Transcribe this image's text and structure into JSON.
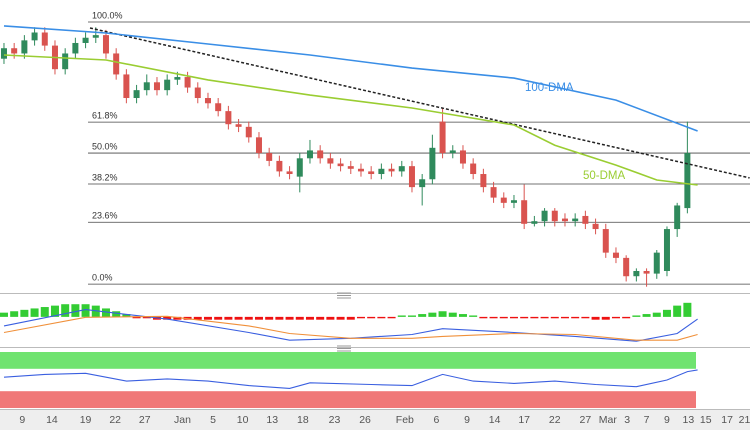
{
  "chart_data": {
    "type": "candlestick",
    "xlim": [
      -0.39,
      73.14
    ],
    "ylim": [
      -3.4,
      108.4
    ],
    "xticks": [
      {
        "value": 1.8,
        "label": "9"
      },
      {
        "value": 4.7,
        "label": "14"
      },
      {
        "value": 8.0,
        "label": "19"
      },
      {
        "value": 10.9,
        "label": "22"
      },
      {
        "value": 13.8,
        "label": "27"
      },
      {
        "value": 17.5,
        "label": "Jan"
      },
      {
        "value": 20.5,
        "label": "5"
      },
      {
        "value": 23.4,
        "label": "10"
      },
      {
        "value": 26.3,
        "label": "13"
      },
      {
        "value": 29.3,
        "label": "18"
      },
      {
        "value": 32.4,
        "label": "23"
      },
      {
        "value": 35.4,
        "label": "26"
      },
      {
        "value": 39.3,
        "label": "Feb"
      },
      {
        "value": 42.4,
        "label": "6"
      },
      {
        "value": 45.4,
        "label": "9"
      },
      {
        "value": 48.1,
        "label": "14"
      },
      {
        "value": 51.0,
        "label": "17"
      },
      {
        "value": 54.0,
        "label": "22"
      },
      {
        "value": 57.0,
        "label": "27"
      },
      {
        "value": 59.2,
        "label": "Mar"
      },
      {
        "value": 61.1,
        "label": "3"
      },
      {
        "value": 63.0,
        "label": "7"
      },
      {
        "value": 65.0,
        "label": "9"
      },
      {
        "value": 67.1,
        "label": "13"
      },
      {
        "value": 68.8,
        "label": "15"
      },
      {
        "value": 70.9,
        "label": "17"
      },
      {
        "value": 72.6,
        "label": "21"
      }
    ],
    "up_color": "#2f8a5c",
    "down_color": "#d9534f",
    "open": [
      86,
      90,
      88,
      93,
      96,
      91,
      82,
      88,
      92,
      94,
      95,
      88,
      80,
      71,
      74,
      77,
      74,
      78,
      79,
      75,
      71,
      69,
      66,
      61,
      60,
      56,
      50,
      47,
      43,
      41,
      48,
      51,
      48,
      46,
      45,
      44,
      43,
      42,
      44,
      43,
      45,
      37,
      40,
      62,
      50,
      51,
      46,
      42,
      37,
      33,
      31,
      32,
      23,
      24,
      28,
      25,
      24,
      26,
      23,
      21,
      12,
      10,
      3,
      5,
      4,
      5,
      21,
      29
    ],
    "high": [
      92,
      92,
      95,
      98,
      98,
      93,
      90,
      94,
      96,
      98,
      97,
      90,
      82,
      76,
      80,
      79,
      80,
      81,
      81,
      77,
      73,
      71,
      68,
      63,
      62,
      58,
      52,
      49,
      45,
      50,
      55,
      53,
      50,
      48,
      47,
      46,
      45,
      46,
      46,
      47,
      47,
      42,
      57,
      67,
      53,
      53,
      48,
      44,
      39,
      35,
      34,
      38,
      26,
      29,
      29,
      27,
      27,
      28,
      25,
      23,
      14,
      11,
      6,
      6,
      13,
      22,
      31,
      62
    ],
    "low": [
      84,
      86,
      86,
      91,
      89,
      80,
      80,
      86,
      90,
      92,
      86,
      78,
      69,
      69,
      72,
      72,
      72,
      76,
      73,
      69,
      67,
      64,
      59,
      58,
      54,
      48,
      45,
      41,
      40,
      35,
      46,
      46,
      44,
      43,
      42,
      41,
      40,
      40,
      41,
      41,
      35,
      30,
      38,
      48,
      48,
      44,
      40,
      35,
      31,
      29,
      29,
      21,
      22,
      22,
      22,
      22,
      22,
      21,
      19,
      10,
      8,
      1,
      1,
      -1,
      2,
      3,
      18,
      27
    ],
    "close": [
      90,
      88,
      93,
      96,
      91,
      82,
      88,
      92,
      94,
      95,
      88,
      80,
      71,
      74,
      77,
      74,
      78,
      79,
      75,
      71,
      69,
      66,
      61,
      60,
      56,
      50,
      47,
      43,
      42,
      48,
      51,
      48,
      46,
      45,
      44,
      43,
      42,
      44,
      43,
      45,
      37,
      40,
      52,
      50,
      51,
      46,
      42,
      37,
      33,
      31,
      32,
      23,
      24,
      28,
      24,
      24,
      25,
      23,
      21,
      12,
      10,
      3,
      5,
      4,
      12,
      21,
      30,
      50
    ],
    "fib_levels": [
      {
        "value": 100,
        "label": "100.0%"
      },
      {
        "value": 61.8,
        "label": "61.8%"
      },
      {
        "value": 50,
        "label": "50.0%"
      },
      {
        "value": 38.2,
        "label": "38.2%"
      },
      {
        "value": 23.6,
        "label": "23.6%"
      },
      {
        "value": 0,
        "label": "0.0%"
      }
    ],
    "series": [
      {
        "name": "100-DMA",
        "color": "#3a8ee6",
        "x": [
          0,
          10,
          20,
          30,
          40,
          50,
          60,
          68
        ],
        "values": [
          98.5,
          95.8,
          91.6,
          87.4,
          82.4,
          78.6,
          70.2,
          58.4
        ]
      },
      {
        "name": "50-DMA",
        "color": "#9acd32",
        "x": [
          0,
          10,
          20,
          30,
          40,
          50,
          54,
          60,
          64,
          68
        ],
        "values": [
          87.4,
          85.5,
          77.9,
          72.1,
          67.2,
          60.7,
          53,
          45.4,
          39.7,
          37.8
        ]
      }
    ],
    "trendline": {
      "color": "#222222",
      "x": [
        8.43,
        73.1
      ],
      "values": [
        97.7,
        40.5
      ]
    },
    "macd": {
      "ylim": [
        -20,
        12
      ],
      "up_color": "#33cc33",
      "down_color": "#ee1111",
      "histogram": [
        3,
        4,
        5,
        6,
        7,
        8,
        9,
        9,
        9,
        8,
        6,
        4,
        2,
        -1,
        -1,
        -2,
        -2,
        -2,
        -2,
        -2,
        -2,
        -2,
        -2,
        -2,
        -2,
        -2,
        -2,
        -2,
        -2,
        -2,
        -2,
        -2,
        -2,
        -2,
        -2,
        -1,
        -1,
        -1,
        -1,
        1,
        1,
        2,
        3,
        4,
        3,
        2,
        1,
        -1,
        -1,
        -1,
        -1,
        -1,
        -1,
        -1,
        -1,
        -1,
        -1,
        -1,
        -2,
        -2,
        -1,
        -1,
        1,
        2,
        3,
        5,
        8,
        10
      ],
      "lines": [
        {
          "color": "#3a5fe0",
          "x": [
            0,
            8,
            16,
            24,
            28,
            34,
            40,
            43,
            50,
            56,
            62,
            66,
            68
          ],
          "values": [
            -6.4,
            5.2,
            -1.6,
            -11.1,
            -16.6,
            -15.2,
            -12.5,
            -8.4,
            -11.1,
            -13.9,
            -17.3,
            -11.8,
            -1.6
          ]
        },
        {
          "color": "#f0903a",
          "x": [
            0,
            8,
            16,
            24,
            28,
            34,
            40,
            43,
            50,
            56,
            62,
            66,
            68
          ],
          "values": [
            -11.1,
            -0.3,
            0.4,
            -6.4,
            -11.8,
            -15.2,
            -15.2,
            -13.9,
            -11.8,
            -12.5,
            -16.6,
            -16.6,
            -12.5
          ]
        }
      ]
    },
    "rsi": {
      "ylim": [
        0,
        100
      ],
      "bands": [
        {
          "color": "#6fe36f",
          "range": [
            70,
            100
          ]
        },
        {
          "color": "#f07878",
          "range": [
            0,
            30
          ]
        }
      ],
      "line": {
        "color": "#3a5fe0",
        "x": [
          0,
          4,
          8,
          12,
          16,
          20,
          24,
          28,
          30,
          36,
          40,
          43,
          46,
          50,
          54,
          58,
          62,
          65,
          67,
          68
        ],
        "values": [
          55,
          60,
          62,
          48,
          52,
          48,
          40,
          35,
          45,
          42,
          40,
          60,
          48,
          44,
          48,
          42,
          38,
          50,
          65,
          68
        ]
      }
    }
  }
}
